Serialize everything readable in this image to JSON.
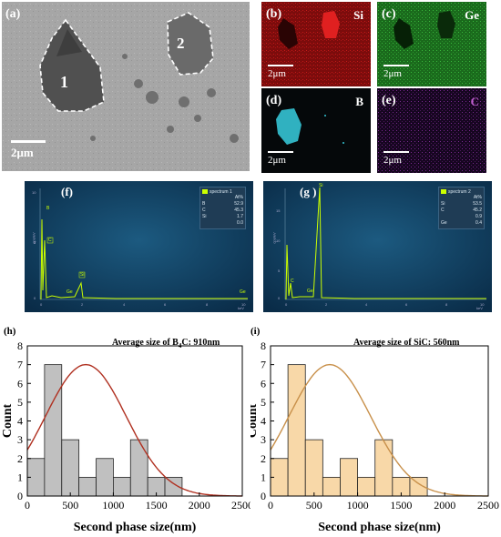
{
  "panels": {
    "a": {
      "label": "(a)",
      "region1": "1",
      "region2": "2",
      "scale": "2μm"
    },
    "b": {
      "label": "(b)",
      "element": "Si",
      "scale": "2μm",
      "color": "#d42020"
    },
    "c": {
      "label": "(c)",
      "element": "Ge",
      "scale": "2μm",
      "color": "#22a02a"
    },
    "d": {
      "label": "(d)",
      "element": "B",
      "scale": "2μm",
      "color": "#35c4d4"
    },
    "e": {
      "label": "(e)",
      "element": "C",
      "scale": "2μm",
      "color": "#b040c0"
    }
  },
  "spectra": [
    {
      "label": "(f)",
      "legend_title": "spectrum 1",
      "legend_header": "At%",
      "composition": [
        [
          "B",
          "52.9"
        ],
        [
          "C",
          "45.3"
        ],
        [
          "Si",
          "1.7"
        ],
        [
          "",
          "0.0"
        ]
      ],
      "peak_labels": [
        "B",
        "C",
        "Ge",
        "Si",
        "Ge"
      ],
      "y_ticks": [
        "0",
        "5",
        "10"
      ],
      "x_ticks": [
        "0",
        "2",
        "4",
        "6",
        "8",
        "10"
      ],
      "ylabel": "cps/eV",
      "xlabel": "keV"
    },
    {
      "label": "(g )",
      "legend_title": "spectrum 2",
      "legend_header": "At%",
      "composition": [
        [
          "Si",
          "53.5"
        ],
        [
          "C",
          "45.2"
        ],
        [
          "",
          "0.9"
        ],
        [
          "Ge",
          "0.4"
        ]
      ],
      "peak_labels": [
        "Si",
        "C",
        "Ge"
      ],
      "y_ticks": [
        "0",
        "5",
        "10",
        "15"
      ],
      "x_ticks": [
        "0",
        "2",
        "4",
        "6",
        "8",
        "10"
      ],
      "ylabel": "cps/eV",
      "xlabel": "keV"
    }
  ],
  "chart_data": [
    {
      "type": "bar",
      "panel_label": "(h)",
      "annotation_prefix": "Average size of B",
      "annotation_sub": "4",
      "annotation_suffix": "C: 910nm",
      "bins": [
        [
          0,
          200
        ],
        [
          200,
          400
        ],
        [
          400,
          600
        ],
        [
          600,
          800
        ],
        [
          800,
          1000
        ],
        [
          1000,
          1200
        ],
        [
          1200,
          1400
        ],
        [
          1400,
          1600
        ],
        [
          1600,
          1800
        ]
      ],
      "values": [
        2,
        7,
        3,
        1,
        2,
        1,
        3,
        1,
        1
      ],
      "curve": {
        "type": "gaussian",
        "peak_x": 680,
        "peak_y": 7.0,
        "sigma": 470
      },
      "xlabel": "Second phase size(nm)",
      "ylabel": "Count",
      "xlim": [
        0,
        2500
      ],
      "ylim": [
        0,
        8
      ],
      "x_ticks": [
        0,
        500,
        1000,
        1500,
        2000,
        2500
      ],
      "y_ticks": [
        0,
        1,
        2,
        3,
        4,
        5,
        6,
        7,
        8
      ],
      "bar_color": "#c0c0c0",
      "curve_color": "#b03020"
    },
    {
      "type": "bar",
      "panel_label": "(i)",
      "annotation_prefix": "Average size of SiC: 560nm",
      "annotation_sub": "",
      "annotation_suffix": "",
      "bins": [
        [
          0,
          200
        ],
        [
          200,
          400
        ],
        [
          400,
          600
        ],
        [
          600,
          800
        ],
        [
          800,
          1000
        ],
        [
          1000,
          1200
        ],
        [
          1200,
          1400
        ],
        [
          1400,
          1600
        ],
        [
          1600,
          1800
        ]
      ],
      "values": [
        2,
        7,
        3,
        1,
        2,
        1,
        3,
        1,
        1
      ],
      "curve": {
        "type": "gaussian",
        "peak_x": 680,
        "peak_y": 7.0,
        "sigma": 470
      },
      "xlabel": "Second phase size(nm)",
      "ylabel": "Count",
      "xlim": [
        0,
        2500
      ],
      "ylim": [
        0,
        8
      ],
      "x_ticks": [
        0,
        500,
        1000,
        1500,
        2000,
        2500
      ],
      "y_ticks": [
        0,
        1,
        2,
        3,
        4,
        5,
        6,
        7,
        8
      ],
      "bar_color": "#f8d8a8",
      "curve_color": "#c8904a"
    }
  ]
}
